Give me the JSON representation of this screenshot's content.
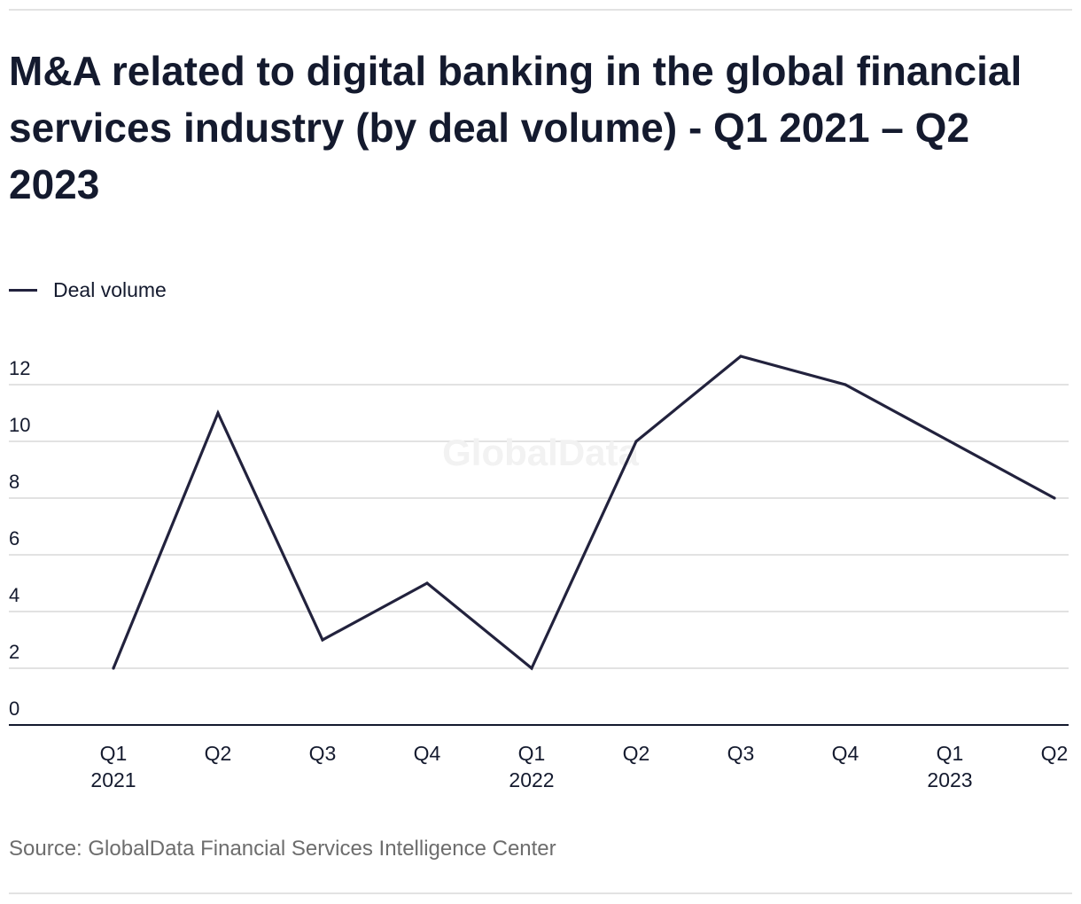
{
  "title": "M&A related to digital banking in the global financial services industry (by deal volume) - Q1 2021 – Q2 2023",
  "legend": {
    "label": "Deal volume"
  },
  "watermark": "GlobalData",
  "source": "Source: GlobalData Financial Services Intelligence Center",
  "colors": {
    "line": "#22223d",
    "grid": "#d9d9d9",
    "axis": "#141a2e",
    "text": "#141a2e",
    "muted": "#6d6d6d"
  },
  "chart_data": {
    "type": "line",
    "title": "M&A related to digital banking in the global financial services industry (by deal volume) - Q1 2021 – Q2 2023",
    "xlabel": "",
    "ylabel": "",
    "categories": [
      "Q1",
      "Q2",
      "Q3",
      "Q4",
      "Q1",
      "Q2",
      "Q3",
      "Q4",
      "Q1",
      "Q2"
    ],
    "year_labels": [
      "2021",
      "",
      "",
      "",
      "2022",
      "",
      "",
      "",
      "2023",
      ""
    ],
    "series": [
      {
        "name": "Deal volume",
        "values": [
          2,
          11,
          3,
          5,
          2,
          10,
          13,
          12,
          10,
          8
        ]
      }
    ],
    "yticks": [
      0,
      2,
      4,
      6,
      8,
      10,
      12
    ],
    "ylim": [
      0,
      14
    ],
    "grid": true,
    "legend_position": "top-left"
  }
}
